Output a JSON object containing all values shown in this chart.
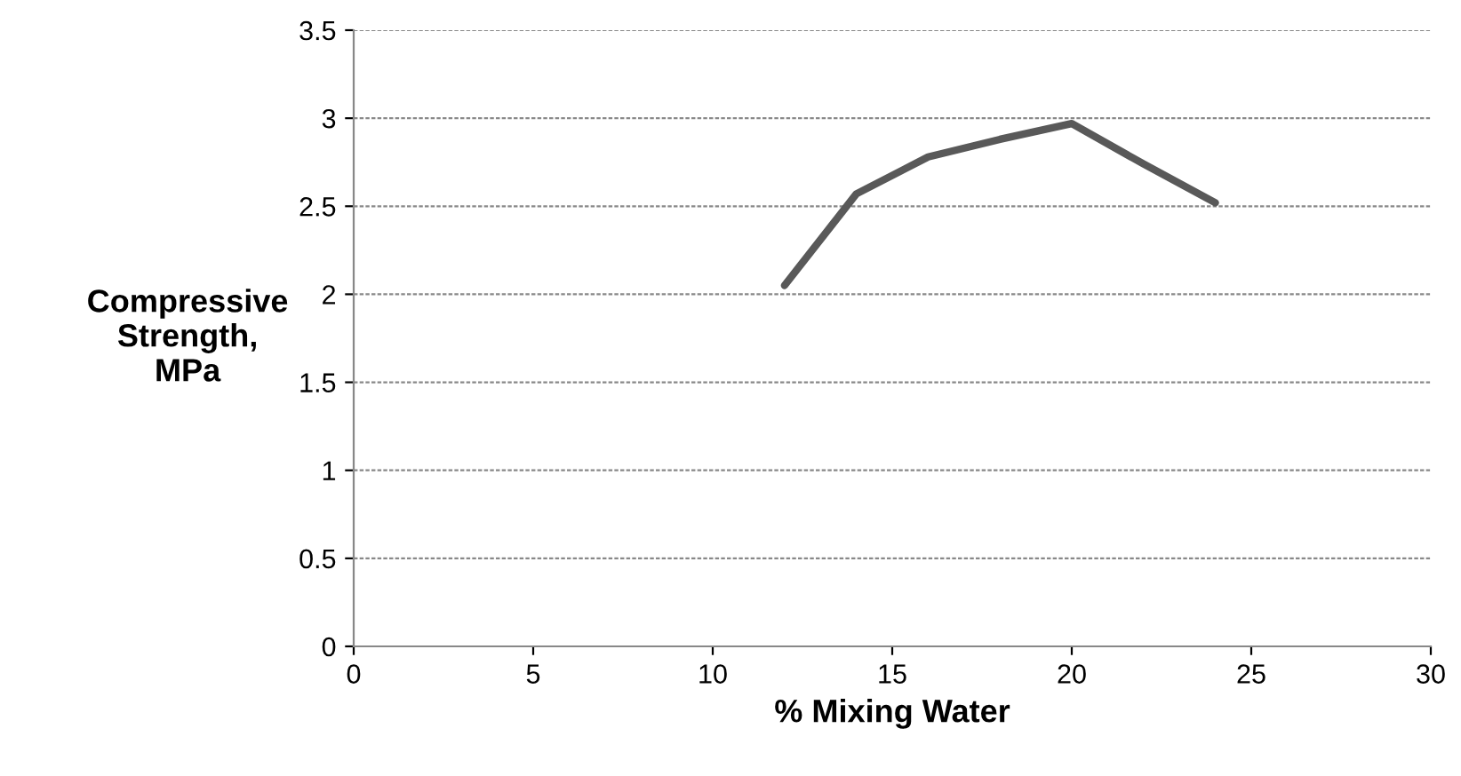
{
  "chart_data": {
    "type": "line",
    "xlabel": "% Mixing Water",
    "ylabel": "Compressive\nStrength,\nMPa",
    "series": [
      {
        "color": "#595959",
        "x": [
          12,
          14,
          16,
          18,
          20,
          22,
          24
        ],
        "values": [
          2.05,
          2.57,
          2.78,
          2.88,
          2.97,
          2.74,
          2.52
        ]
      }
    ],
    "xlim": [
      0,
      30
    ],
    "xticks": [
      0,
      5,
      10,
      15,
      20,
      25,
      30
    ],
    "ylim": [
      0,
      3.5
    ],
    "yticks": [
      0,
      0.5,
      1,
      1.5,
      2,
      2.5,
      3,
      3.5
    ],
    "grid": "y",
    "legend": false,
    "marker": "none",
    "line_style": "solid"
  }
}
